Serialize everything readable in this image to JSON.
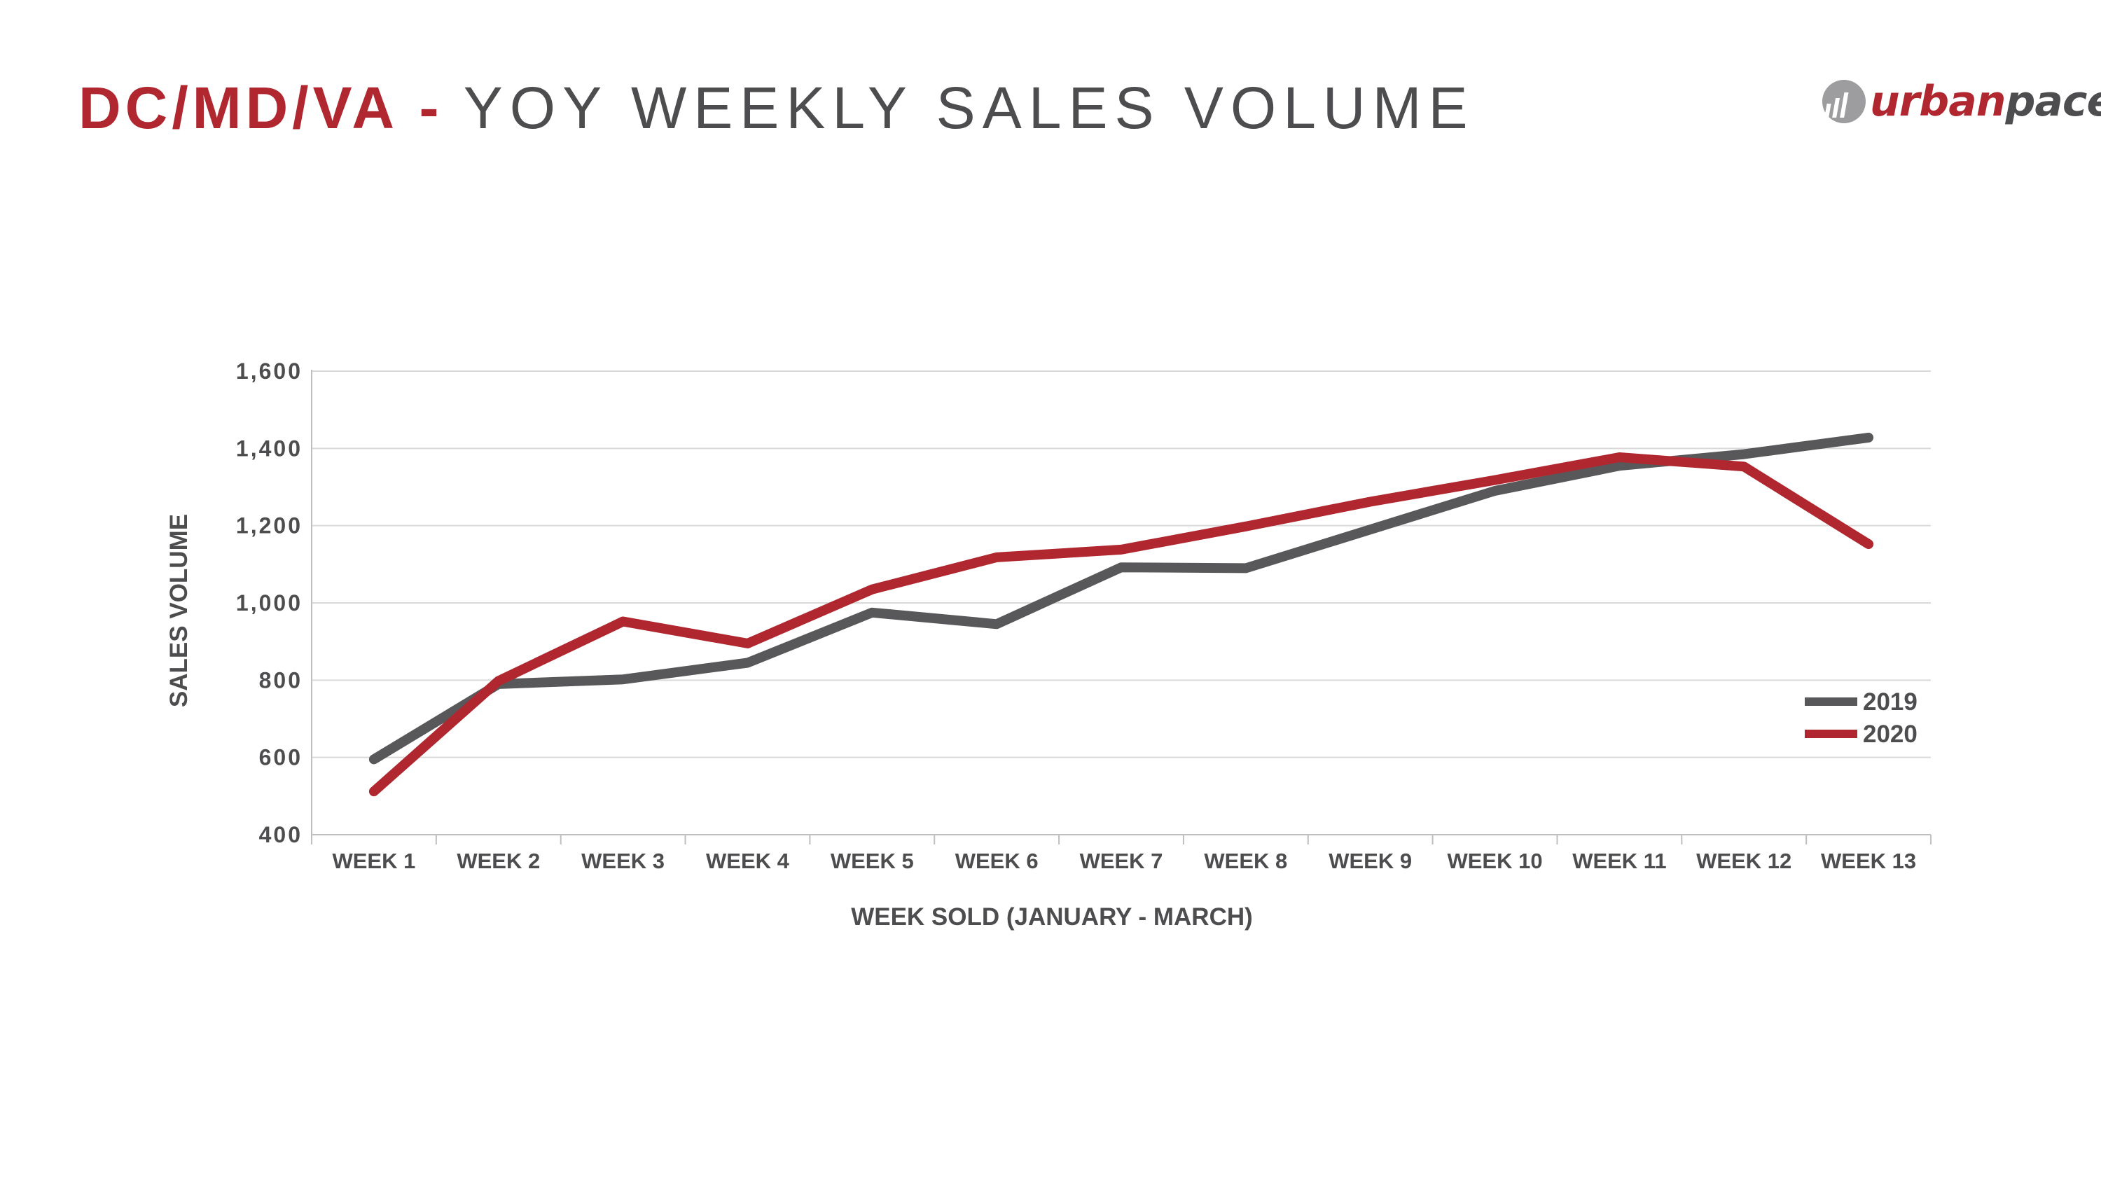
{
  "header": {
    "region": "DC/MD/VA",
    "separator": "-",
    "subtitle": "YOY WEEKLY SALES VOLUME"
  },
  "logo": {
    "urban": "urban",
    "pace": "pace",
    "icon": "bar-chart-circle-icon"
  },
  "colors": {
    "series_2019": "#58585a",
    "series_2020": "#b0272f",
    "grid": "#d9d9d9",
    "text": "#4d4d4f"
  },
  "chart_data": {
    "type": "line",
    "title": "",
    "xlabel": "WEEK SOLD (JANUARY - MARCH)",
    "ylabel": "SALES VOLUME",
    "ylim": [
      400,
      1600
    ],
    "yticks": [
      400,
      600,
      800,
      1000,
      1200,
      1400,
      1600
    ],
    "ytick_labels": [
      "400",
      "600",
      "800",
      "1,000",
      "1,200",
      "1,400",
      "1,600"
    ],
    "grid": true,
    "legend_position": "right",
    "categories": [
      "WEEK 1",
      "WEEK 2",
      "WEEK 3",
      "WEEK 4",
      "WEEK 5",
      "WEEK 6",
      "WEEK 7",
      "WEEK 8",
      "WEEK 9",
      "WEEK 10",
      "WEEK 11",
      "WEEK 12",
      "WEEK 13"
    ],
    "series": [
      {
        "name": "2019",
        "color": "#58585a",
        "values": [
          595,
          790,
          802,
          845,
          975,
          945,
          1092,
          1090,
          1190,
          1290,
          1355,
          1385,
          1428
        ]
      },
      {
        "name": "2020",
        "color": "#b0272f",
        "values": [
          512,
          798,
          952,
          895,
          1035,
          1118,
          1138,
          1198,
          1262,
          1318,
          1377,
          1353,
          1152
        ]
      }
    ]
  }
}
